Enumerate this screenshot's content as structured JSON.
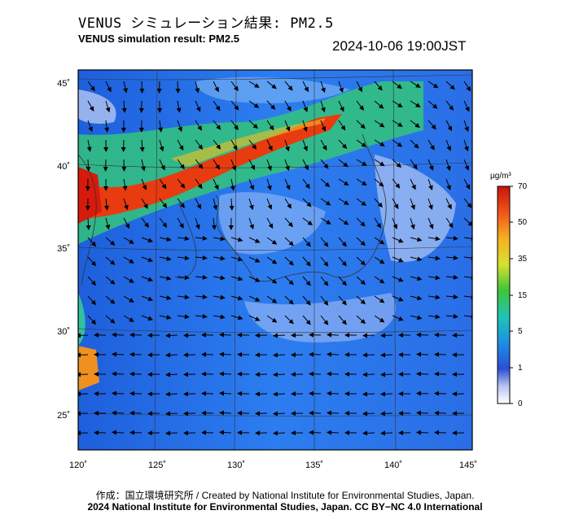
{
  "title_jp": "VENUS シミュレーション結果: PM2.5",
  "title_en": "VENUS simulation result: PM2.5",
  "timestamp": "2024-10-06 19:00JST",
  "map": {
    "lon_labels": [
      "120˚",
      "125˚",
      "130˚",
      "135˚",
      "140˚",
      "145˚"
    ],
    "lat_labels": [
      "45˚",
      "40˚",
      "35˚",
      "30˚",
      "25˚"
    ]
  },
  "colorbar": {
    "unit": "µg/m³",
    "labels": [
      "70",
      "50",
      "35",
      "15",
      "5",
      "1",
      "0"
    ],
    "colors": [
      "#d61a0c",
      "#f07a12",
      "#f5d020",
      "#3ec43a",
      "#1fb6c8",
      "#2a6ee6",
      "#cfd6f5",
      "#ffffff"
    ]
  },
  "credits": {
    "line1": "作成：国立環境研究所 / Created by National Institute for Environmental Studies, Japan.",
    "line2": "2024 National Institute for Environmental Studies, Japan. CC BY−NC 4.0 International"
  }
}
